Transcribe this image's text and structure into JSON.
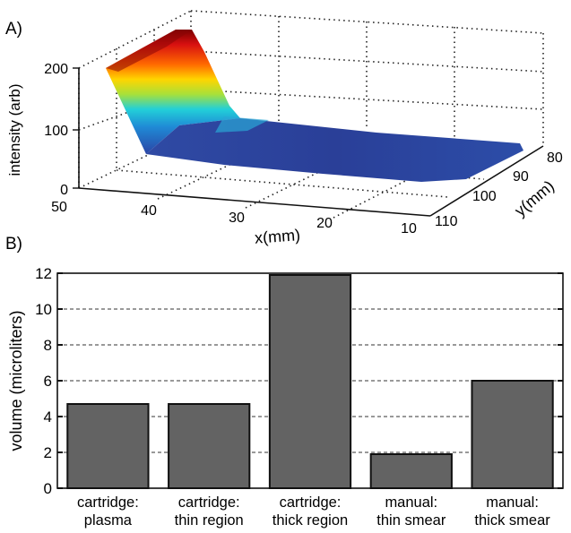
{
  "panels": {
    "a_label": "A)",
    "b_label": "B)"
  },
  "surface": {
    "type": "surface3d",
    "zlabel": "intensity (arb)",
    "xlabel": "x(mm)",
    "ylabel": "y(mm)",
    "xticks": [
      "50",
      "40",
      "30",
      "20",
      "10"
    ],
    "yticks": [
      "110",
      "100",
      "90",
      "80"
    ],
    "zticks": [
      "0",
      "100",
      "200"
    ],
    "colormap": "jet",
    "xlim": [
      10,
      50
    ],
    "ylim": [
      80,
      110
    ],
    "zlim": [
      0,
      230
    ]
  },
  "chart_data": {
    "type": "bar",
    "ylabel": "volume (microliters)",
    "ylim": [
      0,
      12
    ],
    "yticks": [
      "0",
      "2",
      "4",
      "6",
      "8",
      "10",
      "12"
    ],
    "grid": "horizontal dashed at y = 2..10",
    "bar_color": "#636363",
    "categories": [
      {
        "line1": "cartridge:",
        "line2": "plasma"
      },
      {
        "line1": "cartridge:",
        "line2": "thin region"
      },
      {
        "line1": "cartridge:",
        "line2": "thick region"
      },
      {
        "line1": "manual:",
        "line2": "thin smear"
      },
      {
        "line1": "manual:",
        "line2": "thick smear"
      }
    ],
    "values": [
      4.7,
      4.7,
      11.9,
      1.9,
      6.0
    ]
  }
}
